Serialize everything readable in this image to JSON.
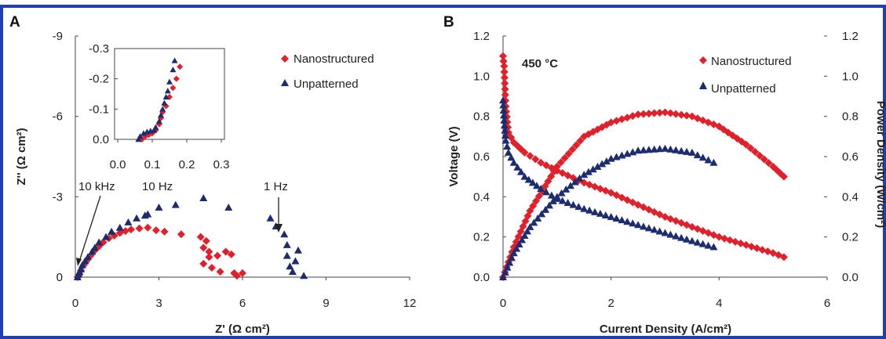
{
  "frame_color": "#1f3fb5",
  "series_colors": {
    "Nanostructured": "#e0202a",
    "Unpatterned": "#1c2c6e"
  },
  "chart_data": [
    {
      "panel": "A",
      "type": "scatter",
      "xlabel": "Z' (Ω cm²)",
      "ylabel": "Z'' (Ω cm²)",
      "xlim": [
        0,
        12
      ],
      "ylim": [
        -9,
        0
      ],
      "y_inverted": true,
      "xticks": [
        "0",
        "3",
        "6",
        "9",
        "12"
      ],
      "yticks": [
        "-9",
        "-6",
        "-3",
        "0"
      ],
      "legend_position": "top-right",
      "annotations": [
        {
          "text": "10 kHz",
          "x": 0.25,
          "y": -3.0
        },
        {
          "text": "10 Hz",
          "x": 3.0,
          "y": -3.0
        },
        {
          "text": "1 Hz",
          "x": 7.3,
          "y": -3.0
        }
      ],
      "series": [
        {
          "name": "Nanostructured",
          "marker": "diamond",
          "points": [
            [
              0.08,
              0.0
            ],
            [
              0.1,
              -0.02
            ],
            [
              0.15,
              -0.1
            ],
            [
              0.2,
              -0.25
            ],
            [
              0.3,
              -0.45
            ],
            [
              0.4,
              -0.6
            ],
            [
              0.55,
              -0.8
            ],
            [
              0.7,
              -1.0
            ],
            [
              0.85,
              -1.15
            ],
            [
              1.0,
              -1.3
            ],
            [
              1.2,
              -1.45
            ],
            [
              1.4,
              -1.55
            ],
            [
              1.6,
              -1.65
            ],
            [
              1.8,
              -1.72
            ],
            [
              2.0,
              -1.78
            ],
            [
              2.3,
              -1.82
            ],
            [
              2.6,
              -1.85
            ],
            [
              2.9,
              -1.75
            ],
            [
              3.2,
              -1.7
            ],
            [
              3.8,
              -1.6
            ],
            [
              4.5,
              -1.5
            ],
            [
              4.7,
              -1.35
            ],
            [
              4.6,
              -1.1
            ],
            [
              4.8,
              -0.95
            ],
            [
              5.1,
              -0.8
            ],
            [
              4.8,
              -0.75
            ],
            [
              5.4,
              -0.95
            ],
            [
              5.6,
              -0.85
            ],
            [
              4.6,
              -0.5
            ],
            [
              4.9,
              -0.35
            ],
            [
              5.2,
              -0.2
            ],
            [
              5.7,
              -0.15
            ],
            [
              5.8,
              -0.05
            ],
            [
              6.0,
              -0.15
            ]
          ]
        },
        {
          "name": "Unpatterned",
          "marker": "triangle",
          "points": [
            [
              0.08,
              0.0
            ],
            [
              0.12,
              -0.1
            ],
            [
              0.15,
              -0.2
            ],
            [
              0.2,
              -0.3
            ],
            [
              0.25,
              -0.45
            ],
            [
              0.35,
              -0.6
            ],
            [
              0.45,
              -0.75
            ],
            [
              0.6,
              -0.95
            ],
            [
              0.7,
              -1.1
            ],
            [
              0.85,
              -1.3
            ],
            [
              1.1,
              -1.5
            ],
            [
              1.3,
              -1.7
            ],
            [
              1.6,
              -1.85
            ],
            [
              1.9,
              -2.05
            ],
            [
              2.2,
              -2.2
            ],
            [
              2.5,
              -2.3
            ],
            [
              2.6,
              -2.35
            ],
            [
              3.0,
              -2.6
            ],
            [
              3.6,
              -2.7
            ],
            [
              4.6,
              -2.95
            ],
            [
              5.5,
              -2.6
            ],
            [
              7.0,
              -2.2
            ],
            [
              7.2,
              -1.9
            ],
            [
              7.5,
              -1.6
            ],
            [
              7.6,
              -1.2
            ],
            [
              8.0,
              -1.0
            ],
            [
              7.6,
              -0.8
            ],
            [
              7.9,
              -0.6
            ],
            [
              7.7,
              -0.4
            ],
            [
              7.8,
              -0.2
            ],
            [
              8.2,
              -0.05
            ]
          ]
        }
      ],
      "inset": {
        "xlim": [
          0,
          0.3
        ],
        "ylim": [
          -0.3,
          0
        ],
        "xticks": [
          "0.0",
          "0.1",
          "0.2",
          "0.3"
        ],
        "yticks": [
          "-0.3",
          "-0.2",
          "-0.1",
          "0.0"
        ],
        "series": [
          {
            "name": "Nanostructured",
            "marker": "diamond",
            "points": [
              [
                0.07,
                0.0
              ],
              [
                0.08,
                -0.01
              ],
              [
                0.09,
                -0.015
              ],
              [
                0.1,
                -0.02
              ],
              [
                0.11,
                -0.03
              ],
              [
                0.12,
                -0.05
              ],
              [
                0.125,
                -0.07
              ],
              [
                0.13,
                -0.09
              ],
              [
                0.14,
                -0.11
              ],
              [
                0.15,
                -0.14
              ],
              [
                0.16,
                -0.17
              ],
              [
                0.17,
                -0.2
              ],
              [
                0.18,
                -0.24
              ]
            ]
          },
          {
            "name": "Unpatterned",
            "marker": "triangle",
            "points": [
              [
                0.06,
                0.0
              ],
              [
                0.065,
                -0.01
              ],
              [
                0.075,
                -0.02
              ],
              [
                0.085,
                -0.025
              ],
              [
                0.095,
                -0.028
              ],
              [
                0.105,
                -0.03
              ],
              [
                0.11,
                -0.04
              ],
              [
                0.12,
                -0.06
              ],
              [
                0.125,
                -0.08
              ],
              [
                0.13,
                -0.1
              ],
              [
                0.135,
                -0.12
              ],
              [
                0.14,
                -0.14
              ],
              [
                0.145,
                -0.16
              ],
              [
                0.15,
                -0.19
              ],
              [
                0.16,
                -0.23
              ],
              [
                0.165,
                -0.26
              ]
            ]
          }
        ]
      }
    },
    {
      "panel": "B",
      "type": "line",
      "xlabel": "Current Density (A/cm²)",
      "ylabel": "Voltage (V)",
      "y2label": "Power Density (W/cm²)",
      "xlim": [
        0,
        6
      ],
      "ylim": [
        0,
        1.2
      ],
      "y2lim": [
        0,
        1.2
      ],
      "xticks": [
        "0",
        "2",
        "4",
        "6"
      ],
      "yticks": [
        "0.0",
        "0.2",
        "0.4",
        "0.6",
        "0.8",
        "1.0",
        "1.2"
      ],
      "y2ticks": [
        "0.0",
        "0.2",
        "0.4",
        "0.6",
        "0.8",
        "1.0",
        "1.2"
      ],
      "annotation": "450 °C",
      "legend_position": "top-right",
      "series": [
        {
          "name": "Nanostructured",
          "marker": "diamond",
          "axis": "voltage",
          "points": [
            [
              0.0,
              1.1
            ],
            [
              0.02,
              1.05
            ],
            [
              0.05,
              0.85
            ],
            [
              0.1,
              0.72
            ],
            [
              0.2,
              0.67
            ],
            [
              0.4,
              0.62
            ],
            [
              0.7,
              0.57
            ],
            [
              1.0,
              0.53
            ],
            [
              1.5,
              0.47
            ],
            [
              2.0,
              0.42
            ],
            [
              2.5,
              0.36
            ],
            [
              3.0,
              0.3
            ],
            [
              3.5,
              0.25
            ],
            [
              4.0,
              0.2
            ],
            [
              4.5,
              0.16
            ],
            [
              5.0,
              0.12
            ],
            [
              5.2,
              0.1
            ]
          ]
        },
        {
          "name": "Nanostructured",
          "marker": "diamond",
          "axis": "power",
          "points": [
            [
              0.0,
              0.0
            ],
            [
              0.2,
              0.15
            ],
            [
              0.5,
              0.33
            ],
            [
              1.0,
              0.55
            ],
            [
              1.5,
              0.7
            ],
            [
              2.0,
              0.77
            ],
            [
              2.5,
              0.81
            ],
            [
              3.0,
              0.82
            ],
            [
              3.5,
              0.8
            ],
            [
              4.0,
              0.75
            ],
            [
              4.5,
              0.66
            ],
            [
              5.0,
              0.55
            ],
            [
              5.2,
              0.5
            ]
          ]
        },
        {
          "name": "Unpatterned",
          "marker": "triangle",
          "axis": "voltage",
          "points": [
            [
              0.0,
              0.88
            ],
            [
              0.02,
              0.78
            ],
            [
              0.05,
              0.68
            ],
            [
              0.1,
              0.62
            ],
            [
              0.2,
              0.57
            ],
            [
              0.4,
              0.5
            ],
            [
              0.7,
              0.44
            ],
            [
              1.0,
              0.39
            ],
            [
              1.5,
              0.34
            ],
            [
              2.0,
              0.3
            ],
            [
              2.5,
              0.26
            ],
            [
              3.0,
              0.22
            ],
            [
              3.5,
              0.18
            ],
            [
              3.9,
              0.15
            ]
          ]
        },
        {
          "name": "Unpatterned",
          "marker": "triangle",
          "axis": "power",
          "points": [
            [
              0.0,
              0.0
            ],
            [
              0.2,
              0.12
            ],
            [
              0.5,
              0.25
            ],
            [
              1.0,
              0.4
            ],
            [
              1.5,
              0.51
            ],
            [
              2.0,
              0.59
            ],
            [
              2.5,
              0.63
            ],
            [
              3.0,
              0.64
            ],
            [
              3.5,
              0.62
            ],
            [
              3.9,
              0.57
            ]
          ]
        }
      ]
    }
  ]
}
